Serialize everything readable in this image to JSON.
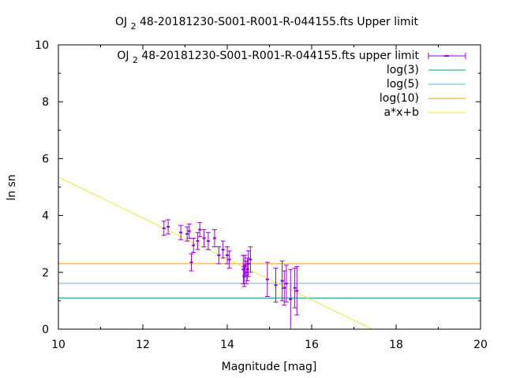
{
  "chart_data": {
    "type": "scatter",
    "title": "OJ 2 48-20181230-S001-R001-R-044155.fts Upper limit",
    "title_parts": [
      "OJ ",
      "2",
      " 48-20181230-S001-R001-R-044155.fts Upper limit"
    ],
    "xlabel": "Magnitude [mag]",
    "ylabel": "ln sn",
    "xlim": [
      10,
      20
    ],
    "ylim": [
      0,
      10
    ],
    "xticks": [
      "10",
      "12",
      "14",
      "16",
      "18",
      "20"
    ],
    "yticks": [
      "0",
      "2",
      "4",
      "6",
      "8",
      "10"
    ],
    "grid": false,
    "legend_position": "top-right",
    "legend": {
      "data_label_parts": [
        "OJ ",
        "2",
        " 48-20181230-S001-R001-R-044155.fts upper limit"
      ],
      "log3_label": "log(3)",
      "log5_label": "log(5)",
      "log10_label": "log(10)",
      "fit_label": "a*x+b"
    },
    "colors": {
      "points": "#9400d3",
      "log3": "#009e73",
      "log5": "#56b4e9",
      "log10": "#e69f00",
      "fit": "#f0e442"
    },
    "series": [
      {
        "x": [
          12.5,
          12.6,
          12.9,
          13.05,
          13.1,
          13.15,
          13.2,
          13.3,
          13.35,
          13.45,
          13.55,
          13.7,
          13.8,
          13.9,
          14.0,
          14.05,
          14.38,
          14.4,
          14.42,
          14.45,
          14.48,
          14.5,
          14.55,
          14.95,
          15.15,
          15.3,
          15.35,
          15.4,
          15.5,
          15.6,
          15.65
        ],
        "y": [
          3.55,
          3.6,
          3.4,
          3.35,
          3.45,
          2.35,
          2.95,
          3.1,
          3.5,
          3.2,
          3.1,
          3.2,
          2.6,
          2.8,
          2.6,
          2.45,
          2.1,
          1.85,
          2.25,
          2.0,
          2.1,
          2.3,
          2.45,
          1.75,
          1.55,
          1.7,
          1.45,
          1.6,
          1.05,
          1.45,
          1.35
        ],
        "yerr": [
          0.25,
          0.25,
          0.25,
          0.25,
          0.25,
          0.3,
          0.25,
          0.3,
          0.25,
          0.3,
          0.3,
          0.3,
          0.3,
          0.3,
          0.3,
          0.3,
          0.5,
          0.35,
          0.35,
          0.4,
          0.4,
          0.45,
          0.45,
          0.6,
          0.6,
          0.7,
          0.6,
          0.65,
          1.05,
          0.7,
          0.85
        ]
      }
    ],
    "hlines": {
      "log3": 1.0986,
      "log5": 1.6094,
      "log10": 2.3026
    },
    "fit": {
      "a": -0.72,
      "b": 12.55
    }
  }
}
